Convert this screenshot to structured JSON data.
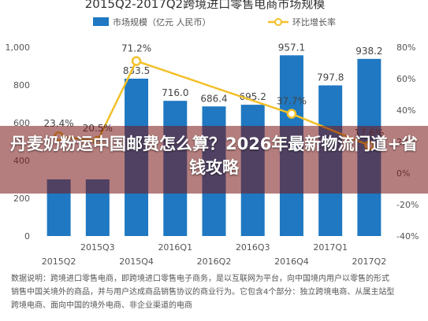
{
  "page": {
    "overlay_title": "丹麦奶粉运中国邮费怎么算？2026年最新物流门道+省钱攻略",
    "footnote_lines": [
      "数据说明：跨境进口零售电商，即跨境进口零售电子商务，是以互联网为平台，向中国境内用户以零售的形式",
      "销售中国关境外的商品，并与用户达成商品销售协议的商业行为。它包含4个部分：独立跨境电商、从属主站型",
      "跨境电商、面向中国的境外电商、非企业渠道的电商"
    ]
  },
  "chart_data": {
    "type": "bar+line",
    "title": "2015Q2-2017Q2跨境进口零售电商市场规模",
    "categories": [
      "2015Q2",
      "2015Q3",
      "2015Q4",
      "2016Q1",
      "2016Q2",
      "2016Q3",
      "2016Q4",
      "2017Q1",
      "2017Q2"
    ],
    "bar_series": {
      "name": "市场规模（亿元 人民币）",
      "values": [
        null,
        null,
        833.5,
        716.0,
        686.4,
        695.2,
        957.1,
        797.8,
        938.2
      ],
      "labels": [
        "",
        "",
        "833.5",
        "716.0",
        "686.4",
        "695.2",
        "957.1",
        "797.8",
        "938.2"
      ],
      "color": "#1f78c1"
    },
    "line_series": {
      "name": "环比增长率",
      "values": [
        23.4,
        20.5,
        71.2,
        null,
        null,
        null,
        37.7,
        null,
        17.6
      ],
      "labels": [
        "23.4%",
        "20.5%",
        "71.2%",
        "",
        "",
        "",
        "37.7%",
        "",
        "17.6%"
      ],
      "color": "#f2c029"
    },
    "y_left": {
      "ticks": [
        "0",
        "200",
        "400",
        "600",
        "800",
        "1,000"
      ],
      "ylim": [
        0,
        1000
      ]
    },
    "y_right": {
      "ticks": [
        "-40%",
        "-20%",
        "0%",
        "20%",
        "40%",
        "60%",
        "80%"
      ],
      "ylim": [
        -40,
        80
      ]
    },
    "legend": "top-center",
    "grid": false
  }
}
